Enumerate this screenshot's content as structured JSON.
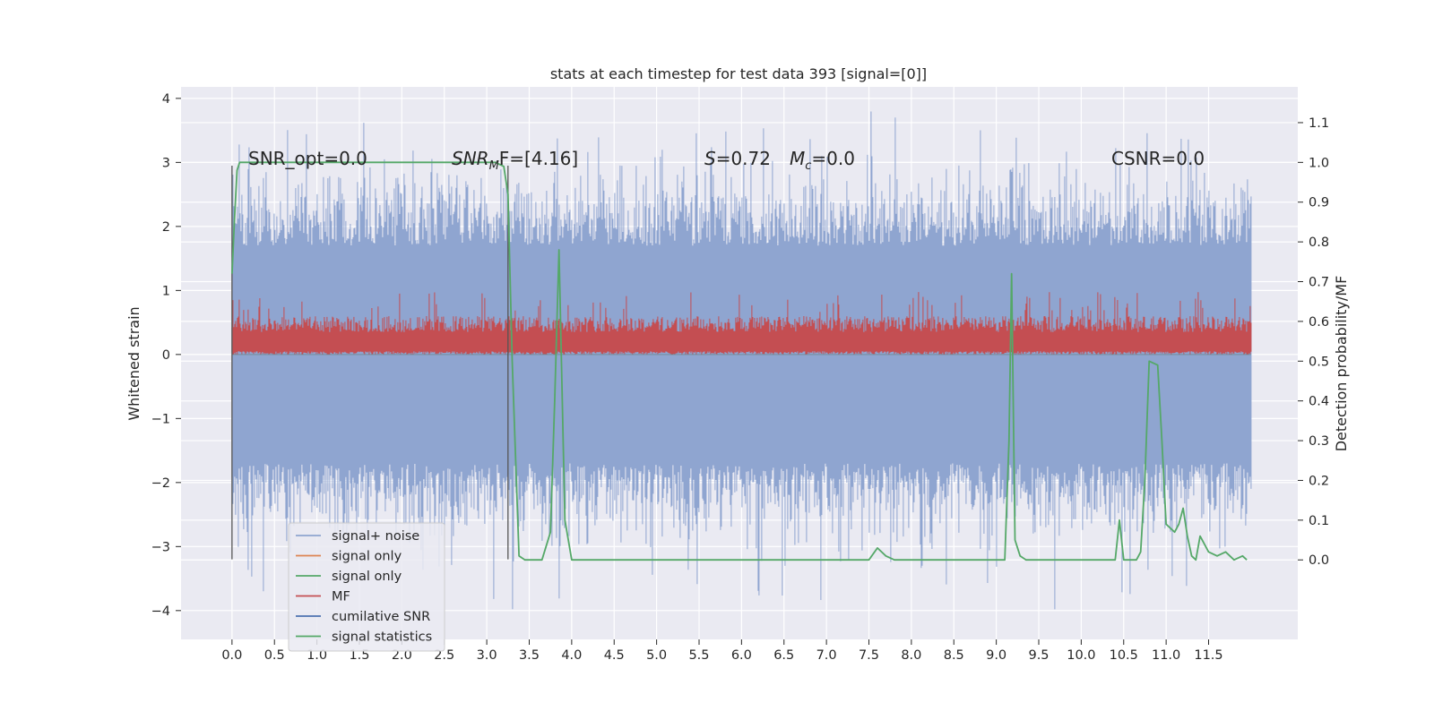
{
  "chart_data": {
    "type": "line",
    "title": "stats at each timestep for test data 393 [signal=[0]]",
    "ylabel": "Whitened strain",
    "ylabel_right": "Detection probability/MF",
    "xlim": [
      -0.6,
      12.55
    ],
    "ylim": [
      -4.45,
      4.18
    ],
    "ylim_right": [
      -0.2,
      1.19
    ],
    "x_ticks": [
      "0.0",
      "0.5",
      "1.0",
      "1.5",
      "2.0",
      "2.5",
      "3.0",
      "3.5",
      "4.0",
      "4.5",
      "5.0",
      "5.5",
      "6.0",
      "6.5",
      "7.0",
      "7.5",
      "8.0",
      "8.5",
      "9.0",
      "9.5",
      "10.0",
      "10.5",
      "11.0",
      "11.5"
    ],
    "y_ticks": [
      "4",
      "3",
      "2",
      "1",
      "0",
      "−1",
      "−2",
      "−3",
      "−4"
    ],
    "y_ticks_right": [
      "1.1",
      "1.0",
      "0.9",
      "0.8",
      "0.7",
      "0.6",
      "0.5",
      "0.4",
      "0.3",
      "0.2",
      "0.1",
      "0.0"
    ],
    "grid": true,
    "legend_position": "lower left (inside)",
    "annotations": {
      "snr_opt": "SNR_opt=0.0",
      "snr_mf_prefix": "SNR",
      "snr_mf_sub": "M",
      "snr_mf_suffix": "F=[4.16]",
      "s_stat_symbol": "S",
      "s_stat_value": "=0.72",
      "mc_symbol": "M",
      "mc_sub": "c",
      "mc_value": "=0.0",
      "csnr": "CSNR=0.0"
    },
    "series": [
      {
        "name": "signal+ noise",
        "color": "#8fa5d0",
        "axis": "left",
        "style": "band",
        "x_range": [
          0.0,
          12.0
        ],
        "envelope_min": [
          -2.0,
          3.0
        ],
        "peak_min": -4.1,
        "peak_max": 3.8
      },
      {
        "name": "signal only",
        "color": "#dd8452",
        "axis": "left",
        "style": "flat",
        "x_range": [
          0.0,
          12.0
        ],
        "value": 0.0
      },
      {
        "name": "signal only",
        "color": "#55a868",
        "axis": "left",
        "style": "flat",
        "x_range": [
          0.0,
          12.0
        ],
        "value": 0.0
      },
      {
        "name": "MF",
        "color": "#c44e52",
        "axis": "left",
        "style": "band",
        "x_range": [
          0.0,
          12.0
        ],
        "envelope_min": [
          0.0,
          0.6
        ],
        "peak_max": 1.0
      },
      {
        "name": "cumilative SNR",
        "color": "#4c72b0",
        "axis": "left",
        "style": "flat",
        "x_range": [
          0.0,
          12.0
        ],
        "value": 0.0
      },
      {
        "name": "signal statistics",
        "color": "#55a868",
        "axis": "right",
        "style": "line",
        "x": [
          0.0,
          0.03,
          0.06,
          0.09,
          0.12,
          0.2,
          0.5,
          1.0,
          1.5,
          2.0,
          2.5,
          3.0,
          3.1,
          3.2,
          3.25,
          3.3,
          3.38,
          3.45,
          3.55,
          3.65,
          3.75,
          3.8,
          3.85,
          3.92,
          4.0,
          4.1,
          4.5,
          5.0,
          6.0,
          7.0,
          7.2,
          7.5,
          7.6,
          7.7,
          7.8,
          8.0,
          8.2,
          8.5,
          9.0,
          9.1,
          9.15,
          9.18,
          9.22,
          9.28,
          9.35,
          9.5,
          10.0,
          10.3,
          10.4,
          10.45,
          10.5,
          10.55,
          10.6,
          10.65,
          10.7,
          10.75,
          10.8,
          10.9,
          10.95,
          11.0,
          11.1,
          11.15,
          11.2,
          11.25,
          11.3,
          11.35,
          11.4,
          11.5,
          11.6,
          11.7,
          11.8,
          11.9,
          11.95
        ],
        "values": [
          0.72,
          0.86,
          0.98,
          1.0,
          1.0,
          1.0,
          1.0,
          1.0,
          1.0,
          1.0,
          1.0,
          1.0,
          1.0,
          0.99,
          0.92,
          0.5,
          0.01,
          0.0,
          0.0,
          0.0,
          0.07,
          0.4,
          0.78,
          0.1,
          0.0,
          0.0,
          0.0,
          0.0,
          0.0,
          0.0,
          0.0,
          0.0,
          0.03,
          0.01,
          0.0,
          0.0,
          0.0,
          0.0,
          0.0,
          0.0,
          0.3,
          0.72,
          0.05,
          0.01,
          0.0,
          0.0,
          0.0,
          0.0,
          0.0,
          0.1,
          0.0,
          0.0,
          0.0,
          0.0,
          0.02,
          0.2,
          0.5,
          0.49,
          0.3,
          0.09,
          0.07,
          0.09,
          0.13,
          0.06,
          0.01,
          0.0,
          0.06,
          0.02,
          0.01,
          0.02,
          0.0,
          0.01,
          0.0
        ]
      }
    ],
    "vlines": [
      {
        "x": 0.0,
        "y_range": [
          -3.2,
          2.95
        ],
        "color": "#555555"
      },
      {
        "x": 3.25,
        "y_range": [
          -3.2,
          2.95
        ],
        "color": "#555555"
      }
    ]
  }
}
